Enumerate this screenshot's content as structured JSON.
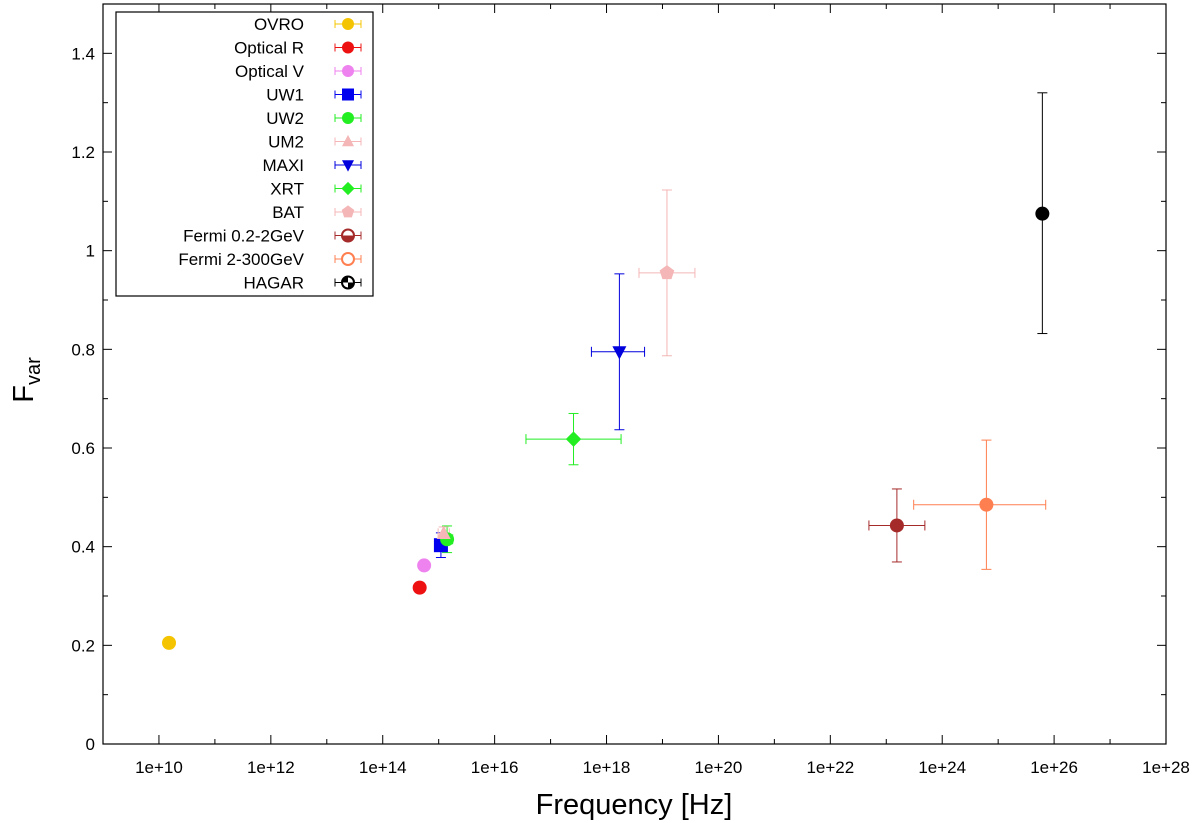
{
  "chart_data": {
    "type": "scatter",
    "title": "",
    "xlabel": "Frequency [Hz]",
    "ylabel_main": "F",
    "ylabel_sub": "var",
    "x_scale": "log10",
    "xlim_log10": [
      9,
      28
    ],
    "ylim": [
      0,
      1.5
    ],
    "x_ticks_log10": [
      10,
      12,
      14,
      16,
      18,
      20,
      22,
      24,
      26,
      28
    ],
    "x_tick_labels": [
      "1e+10",
      "1e+12",
      "1e+14",
      "1e+16",
      "1e+18",
      "1e+20",
      "1e+22",
      "1e+24",
      "1e+26",
      "1e+28"
    ],
    "y_ticks": [
      0,
      0.2,
      0.4,
      0.6,
      0.8,
      1.0,
      1.2,
      1.4
    ],
    "y_tick_labels": [
      "0",
      "0.2",
      "0.4",
      "0.6",
      "0.8",
      "1",
      "1.2",
      "1.4"
    ],
    "grid": false,
    "legend_position": "top-left",
    "series": [
      {
        "name": "OVRO",
        "color": "#f5c400",
        "marker": "circle",
        "x_log10": 10.18,
        "x_err_log10": [
          0,
          0
        ],
        "y": 0.205,
        "y_err": [
          0,
          0
        ]
      },
      {
        "name": "Optical R",
        "color": "#ee1111",
        "marker": "circle",
        "x_log10": 14.66,
        "x_err_log10": [
          0,
          0
        ],
        "y": 0.317,
        "y_err": [
          0,
          0
        ]
      },
      {
        "name": "Optical V",
        "color": "#ee82ee",
        "marker": "circle",
        "x_log10": 14.74,
        "x_err_log10": [
          0,
          0
        ],
        "y": 0.362,
        "y_err": [
          0,
          0
        ]
      },
      {
        "name": "UW1",
        "color": "#0000ee",
        "marker": "square",
        "x_log10": 15.04,
        "x_err_log10": [
          0.1,
          0.1
        ],
        "y": 0.403,
        "y_err": [
          0.025,
          0.025
        ]
      },
      {
        "name": "UW2",
        "color": "#22ee22",
        "marker": "circle",
        "x_log10": 15.15,
        "x_err_log10": [
          0.1,
          0.1
        ],
        "y": 0.415,
        "y_err": [
          0.027,
          0.027
        ]
      },
      {
        "name": "UM2",
        "color": "#f4b6b6",
        "marker": "triangle-up",
        "x_log10": 15.09,
        "x_err_log10": [
          0.1,
          0.1
        ],
        "y": 0.427,
        "y_err": [
          0.013,
          0.013
        ]
      },
      {
        "name": "MAXI",
        "color": "#0000dd",
        "marker": "triangle-down",
        "x_log10": 18.23,
        "x_err_log10": [
          0.5,
          0.45
        ],
        "y": 0.795,
        "y_err": [
          0.158,
          0.158
        ]
      },
      {
        "name": "XRT",
        "color": "#22ee22",
        "marker": "diamond",
        "x_log10": 17.41,
        "x_err_log10": [
          0.85,
          0.85
        ],
        "y": 0.618,
        "y_err": [
          0.052,
          0.052
        ]
      },
      {
        "name": "BAT",
        "color": "#f4b6b6",
        "marker": "pentagon",
        "x_log10": 19.08,
        "x_err_log10": [
          0.5,
          0.5
        ],
        "y": 0.955,
        "y_err": [
          0.168,
          0.168
        ]
      },
      {
        "name": "Fermi 0.2-2GeV",
        "color": "#a52a2a",
        "marker": "half-circle",
        "x_log10": 23.19,
        "x_err_log10": [
          0.5,
          0.5
        ],
        "y": 0.443,
        "y_err": [
          0.074,
          0.074
        ]
      },
      {
        "name": "Fermi 2-300GeV",
        "color": "#ff7f50",
        "marker": "open-circle",
        "x_log10": 24.79,
        "x_err_log10": [
          1.3,
          1.06
        ],
        "y": 0.485,
        "y_err": [
          0.131,
          0.131
        ]
      },
      {
        "name": "HAGAR",
        "color": "#000000",
        "marker": "quarter-circle",
        "x_log10": 25.79,
        "x_err_log10": [
          0,
          0
        ],
        "y": 1.075,
        "y_err": [
          0.243,
          0.245
        ]
      }
    ]
  }
}
